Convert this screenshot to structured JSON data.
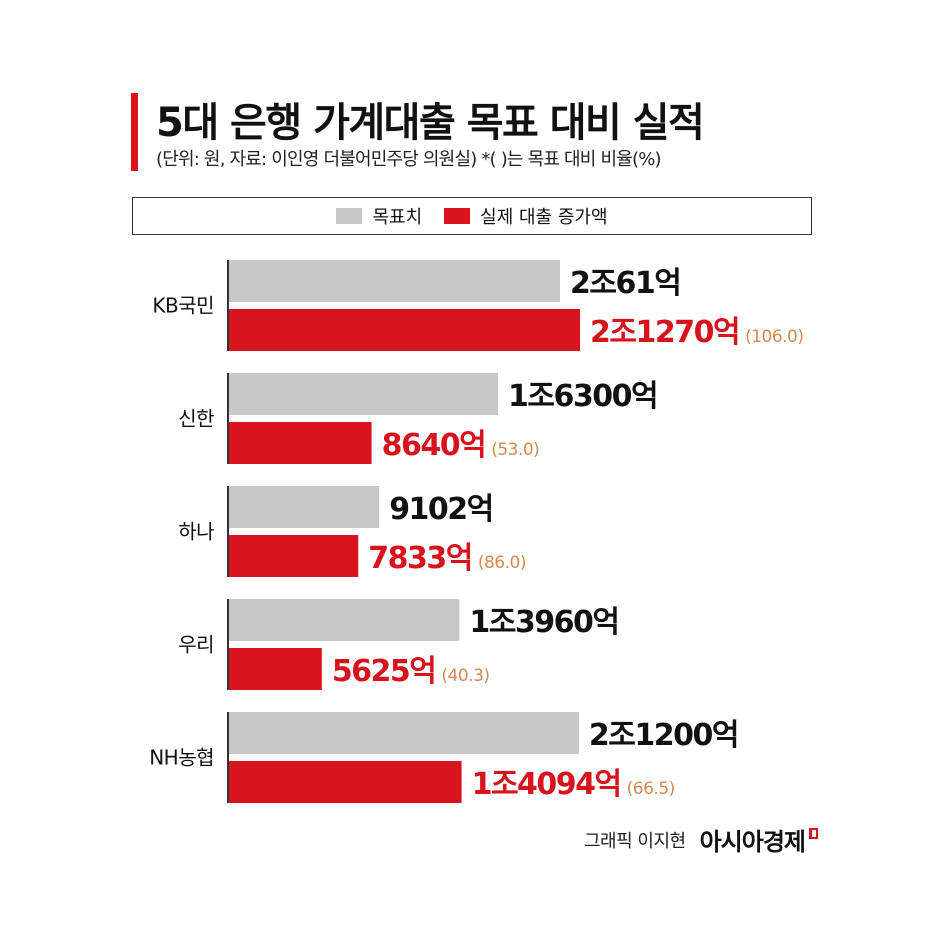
{
  "header": {
    "title": "5대 은행 가계대출 목표 대비 실적",
    "subtitle": "(단위: 원, 자료: 이인영 더불어민주당 의원실)  *(  )는 목표 대비 비율(%)"
  },
  "legend": {
    "target_label": "목표치",
    "actual_label": "실제 대출 증가액"
  },
  "colors": {
    "target": "#c8c8c9",
    "actual": "#d7141e",
    "ratio_text": "#d58a55",
    "accent": "#d7141e"
  },
  "chart_data": {
    "type": "bar",
    "orientation": "horizontal",
    "categories": [
      "KB국민",
      "신한",
      "하나",
      "우리",
      "NH농협"
    ],
    "series": [
      {
        "name": "목표치",
        "values": [
          20061,
          16300,
          9102,
          13960,
          21200
        ],
        "labels": [
          "2조61억",
          "1조6300억",
          "9102억",
          "1조3960억",
          "2조1200억"
        ]
      },
      {
        "name": "실제 대출 증가액",
        "values": [
          21270,
          8640,
          7833,
          5625,
          14094
        ],
        "labels": [
          "2조1270억",
          "8640억",
          "7833억",
          "5625억",
          "1조4094억"
        ],
        "ratios": [
          "(106.0)",
          "(53.0)",
          "(86.0)",
          "(40.3)",
          "(66.5)"
        ]
      }
    ]
  },
  "footer": {
    "author": "그래픽 이지현",
    "brand": "아시아경제"
  }
}
